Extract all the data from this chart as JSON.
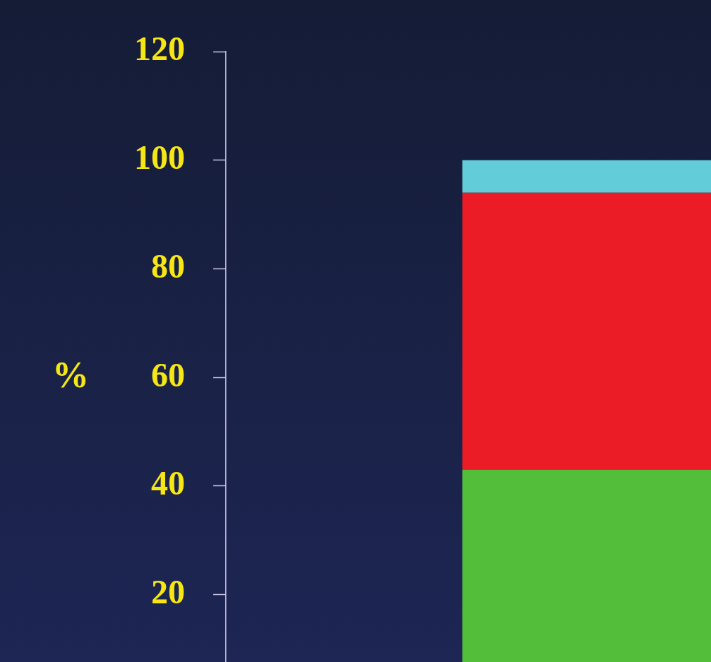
{
  "chart_data": {
    "type": "bar",
    "ylabel": "%",
    "categories": [
      null
    ],
    "stacked": true,
    "series": [
      {
        "color": "#52be3a",
        "values": [
          43
        ]
      },
      {
        "color": "#ec1c27",
        "values": [
          51
        ]
      },
      {
        "color": "#62ccd8",
        "values": [
          6
        ]
      }
    ],
    "ylim": [
      0,
      120
    ],
    "yticks": [
      20,
      40,
      60,
      80,
      100,
      120
    ],
    "grid": false,
    "legend": false
  }
}
